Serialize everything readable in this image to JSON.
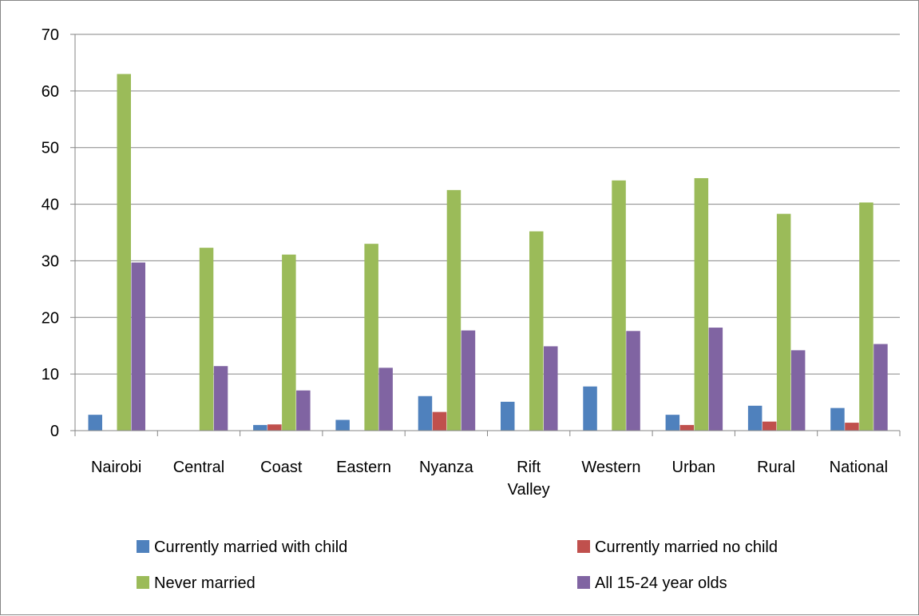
{
  "chart_data": {
    "type": "bar",
    "categories": [
      "Nairobi",
      "Central",
      "Coast",
      "Eastern",
      "Nyanza",
      "Rift Valley",
      "Western",
      "Urban",
      "Rural",
      "National"
    ],
    "series": [
      {
        "name": "Currently married with child",
        "color": "#4F81BD",
        "values": [
          2.8,
          0,
          1.0,
          1.9,
          6.1,
          5.1,
          7.8,
          2.8,
          4.4,
          4.0
        ]
      },
      {
        "name": "Currently married no child",
        "color": "#C0504D",
        "values": [
          0,
          0,
          1.1,
          0,
          3.3,
          0,
          0,
          1.0,
          1.6,
          1.4
        ]
      },
      {
        "name": "Never married",
        "color": "#9BBB59",
        "values": [
          63.0,
          32.3,
          31.1,
          33.0,
          42.5,
          35.2,
          44.2,
          44.6,
          38.3,
          40.3
        ]
      },
      {
        "name": "All 15-24 year olds",
        "color": "#8064A2",
        "values": [
          29.7,
          11.4,
          7.1,
          11.1,
          17.7,
          14.9,
          17.6,
          18.2,
          14.2,
          15.3
        ]
      }
    ],
    "ylim": [
      0,
      70
    ],
    "yticks": [
      0,
      10,
      20,
      30,
      40,
      50,
      60,
      70
    ],
    "grid": true,
    "legend_position": "bottom",
    "title": "",
    "xlabel": "",
    "ylabel": ""
  }
}
